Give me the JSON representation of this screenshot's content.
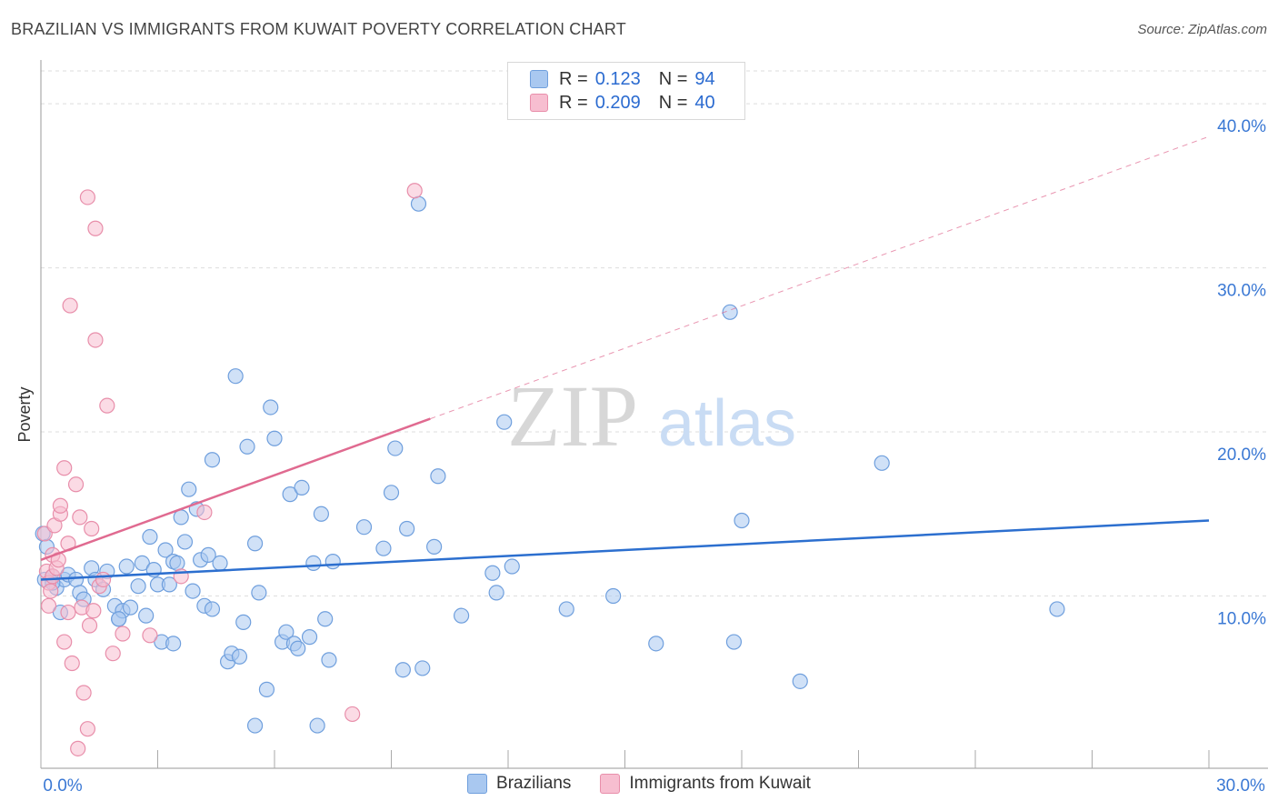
{
  "header": {
    "title": "BRAZILIAN VS IMMIGRANTS FROM KUWAIT POVERTY CORRELATION CHART",
    "source": "Source: ZipAtlas.com"
  },
  "watermark": {
    "part1": "ZIP",
    "part2": "atlas"
  },
  "stats_legend": {
    "rows": [
      {
        "r_label": "R =",
        "r_value": "0.123",
        "n_label": "N =",
        "n_value": "94"
      },
      {
        "r_label": "R =",
        "r_value": "0.209",
        "n_label": "N =",
        "n_value": "40"
      }
    ]
  },
  "colors": {
    "blue_fill": "#a9c8f0",
    "blue_stroke": "#6f9fdd",
    "blue_line": "#2c6fcf",
    "pink_fill": "#f7bed0",
    "pink_stroke": "#e88eaa",
    "pink_line": "#e06a90",
    "tick_label": "#3a78d4",
    "grid": "#dddddd"
  },
  "chart_data": {
    "type": "scatter",
    "title": "BRAZILIAN VS IMMIGRANTS FROM KUWAIT POVERTY CORRELATION CHART",
    "xlabel": "",
    "ylabel": "Poverty",
    "xlim": [
      0,
      30
    ],
    "ylim": [
      -0.5,
      42
    ],
    "x_tick_labels": [
      "0.0%",
      "30.0%"
    ],
    "y_ticks": [
      10,
      20,
      30,
      40
    ],
    "y_tick_labels": [
      "10.0%",
      "20.0%",
      "30.0%",
      "40.0%"
    ],
    "legend": [
      "Brazilians",
      "Immigrants from Kuwait"
    ],
    "series": [
      {
        "name": "Brazilians",
        "color": "#6f9fdd",
        "points": [
          [
            0.05,
            13.8
          ],
          [
            0.15,
            13.0
          ],
          [
            0.1,
            11.0
          ],
          [
            0.3,
            11.2
          ],
          [
            0.4,
            10.5
          ],
          [
            0.5,
            9.0
          ],
          [
            0.6,
            11.0
          ],
          [
            0.7,
            11.3
          ],
          [
            0.9,
            11.0
          ],
          [
            1.0,
            10.2
          ],
          [
            1.1,
            9.8
          ],
          [
            1.3,
            11.7
          ],
          [
            1.4,
            11.0
          ],
          [
            1.7,
            11.5
          ],
          [
            1.9,
            9.4
          ],
          [
            2.0,
            8.6
          ],
          [
            2.1,
            9.1
          ],
          [
            2.2,
            11.8
          ],
          [
            2.3,
            9.3
          ],
          [
            2.5,
            10.6
          ],
          [
            2.6,
            12.0
          ],
          [
            2.7,
            8.8
          ],
          [
            2.8,
            13.6
          ],
          [
            2.9,
            11.6
          ],
          [
            3.0,
            10.7
          ],
          [
            3.1,
            7.2
          ],
          [
            3.2,
            12.8
          ],
          [
            3.3,
            10.7
          ],
          [
            3.4,
            7.1
          ],
          [
            3.4,
            12.1
          ],
          [
            3.6,
            14.8
          ],
          [
            3.7,
            13.3
          ],
          [
            3.8,
            16.5
          ],
          [
            3.9,
            10.3
          ],
          [
            4.0,
            15.3
          ],
          [
            4.1,
            12.2
          ],
          [
            4.2,
            9.4
          ],
          [
            4.3,
            12.5
          ],
          [
            4.4,
            9.2
          ],
          [
            4.4,
            18.3
          ],
          [
            4.6,
            12.0
          ],
          [
            4.8,
            6.0
          ],
          [
            4.9,
            6.5
          ],
          [
            5.0,
            23.4
          ],
          [
            5.1,
            6.3
          ],
          [
            5.2,
            8.4
          ],
          [
            5.3,
            19.1
          ],
          [
            5.5,
            2.1
          ],
          [
            5.5,
            13.2
          ],
          [
            5.6,
            10.2
          ],
          [
            5.8,
            4.3
          ],
          [
            5.9,
            21.5
          ],
          [
            6.0,
            19.6
          ],
          [
            6.2,
            7.2
          ],
          [
            6.3,
            7.8
          ],
          [
            6.4,
            16.2
          ],
          [
            6.5,
            7.1
          ],
          [
            6.6,
            6.8
          ],
          [
            6.7,
            16.6
          ],
          [
            6.9,
            7.5
          ],
          [
            7.0,
            12.0
          ],
          [
            7.1,
            2.1
          ],
          [
            7.2,
            15.0
          ],
          [
            7.3,
            8.6
          ],
          [
            7.4,
            6.1
          ],
          [
            7.5,
            12.1
          ],
          [
            8.3,
            14.2
          ],
          [
            8.8,
            12.9
          ],
          [
            9.0,
            16.3
          ],
          [
            9.1,
            19.0
          ],
          [
            9.3,
            5.5
          ],
          [
            9.4,
            14.1
          ],
          [
            9.7,
            33.9
          ],
          [
            9.8,
            5.6
          ],
          [
            10.1,
            13.0
          ],
          [
            10.2,
            17.3
          ],
          [
            10.8,
            8.8
          ],
          [
            11.6,
            11.4
          ],
          [
            11.7,
            10.2
          ],
          [
            11.9,
            20.6
          ],
          [
            12.1,
            11.8
          ],
          [
            13.5,
            9.2
          ],
          [
            14.7,
            10.0
          ],
          [
            15.8,
            7.1
          ],
          [
            17.7,
            27.3
          ],
          [
            17.8,
            7.2
          ],
          [
            18.0,
            14.6
          ],
          [
            19.5,
            4.8
          ],
          [
            21.6,
            18.1
          ],
          [
            26.1,
            9.2
          ],
          [
            0.3,
            10.8
          ],
          [
            1.6,
            10.4
          ],
          [
            2.0,
            8.6
          ],
          [
            3.5,
            12.0
          ]
        ],
        "trend": {
          "x": [
            0,
            30
          ],
          "y": [
            11.0,
            14.6
          ]
        }
      },
      {
        "name": "Immigrants from Kuwait",
        "color": "#e88eaa",
        "points": [
          [
            0.1,
            13.8
          ],
          [
            0.15,
            11.5
          ],
          [
            0.2,
            10.8
          ],
          [
            0.2,
            9.4
          ],
          [
            0.3,
            12.5
          ],
          [
            0.3,
            11.2
          ],
          [
            0.35,
            14.3
          ],
          [
            0.4,
            11.7
          ],
          [
            0.45,
            12.2
          ],
          [
            0.5,
            15.0
          ],
          [
            0.5,
            15.5
          ],
          [
            0.6,
            7.2
          ],
          [
            0.6,
            17.8
          ],
          [
            0.7,
            9.0
          ],
          [
            0.7,
            13.2
          ],
          [
            0.75,
            27.7
          ],
          [
            0.8,
            5.9
          ],
          [
            0.9,
            16.8
          ],
          [
            0.95,
            0.7
          ],
          [
            1.0,
            14.8
          ],
          [
            1.05,
            9.3
          ],
          [
            1.1,
            4.1
          ],
          [
            1.2,
            1.9
          ],
          [
            1.2,
            34.3
          ],
          [
            1.25,
            8.2
          ],
          [
            1.3,
            14.1
          ],
          [
            1.35,
            9.1
          ],
          [
            1.4,
            32.4
          ],
          [
            1.4,
            25.6
          ],
          [
            1.5,
            10.6
          ],
          [
            1.6,
            11.0
          ],
          [
            1.7,
            21.6
          ],
          [
            1.85,
            6.5
          ],
          [
            2.1,
            7.7
          ],
          [
            2.8,
            7.6
          ],
          [
            3.6,
            11.2
          ],
          [
            4.2,
            15.1
          ],
          [
            8.0,
            2.8
          ],
          [
            9.6,
            34.7
          ],
          [
            0.25,
            10.3
          ]
        ],
        "trend": {
          "x": [
            0,
            10.0
          ],
          "y": [
            12.2,
            20.8
          ]
        },
        "trend_extension": {
          "x": [
            10.0,
            30
          ],
          "y": [
            20.8,
            38.0
          ]
        }
      }
    ]
  },
  "bottom_legend": {
    "items": [
      "Brazilians",
      "Immigrants from Kuwait"
    ]
  }
}
